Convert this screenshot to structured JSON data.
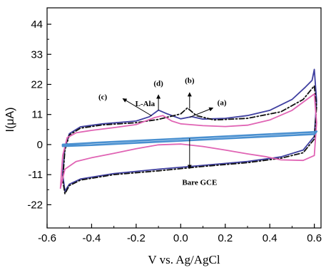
{
  "chart_data": {
    "type": "line",
    "title": "",
    "xlabel": "V vs. Ag/AgCl",
    "ylabel": "I(μA)",
    "xlim": [
      -0.6,
      0.63
    ],
    "ylim": [
      -30.5,
      50
    ],
    "x_ticks": [
      -0.6,
      -0.4,
      -0.2,
      0.0,
      0.2,
      0.4,
      0.6
    ],
    "x_tick_labels": [
      "-0.6",
      "-0.4",
      "-0.2",
      "0.0",
      "0.2",
      "0.4",
      "0.6"
    ],
    "y_ticks": [
      -22,
      -11,
      0,
      11,
      22,
      33,
      44
    ],
    "y_tick_labels": [
      "-22",
      "-11",
      "0",
      "11",
      "22",
      "33",
      "44"
    ],
    "grid": false,
    "series": [
      {
        "label_key": "d",
        "color": "#3f3fa0",
        "dash": "none",
        "points": [
          [
            -0.53,
            -11
          ],
          [
            -0.52,
            -1
          ],
          [
            -0.5,
            4
          ],
          [
            -0.45,
            6.5
          ],
          [
            -0.35,
            7.6
          ],
          [
            -0.2,
            8.6
          ],
          [
            -0.14,
            10.2
          ],
          [
            -0.1,
            12.6
          ],
          [
            -0.06,
            11.2
          ],
          [
            0.0,
            9.4
          ],
          [
            0.05,
            10.2
          ],
          [
            0.1,
            9.3
          ],
          [
            0.2,
            9.6
          ],
          [
            0.3,
            10.6
          ],
          [
            0.4,
            12.5
          ],
          [
            0.5,
            16.5
          ],
          [
            0.56,
            21
          ],
          [
            0.59,
            23.5
          ],
          [
            0.6,
            27.5
          ],
          [
            0.61,
            16
          ],
          [
            0.6,
            3
          ],
          [
            0.55,
            -2
          ],
          [
            0.45,
            -4.5
          ],
          [
            0.3,
            -6.2
          ],
          [
            0.1,
            -7.6
          ],
          [
            -0.1,
            -9
          ],
          [
            -0.3,
            -10.6
          ],
          [
            -0.45,
            -12.6
          ],
          [
            -0.5,
            -14.5
          ],
          [
            -0.52,
            -17
          ],
          [
            -0.53,
            -11
          ]
        ]
      },
      {
        "label_key": "b",
        "color": "#111111",
        "dash": "7 3 2 3",
        "points": [
          [
            -0.53,
            -13
          ],
          [
            -0.52,
            -2
          ],
          [
            -0.5,
            3.5
          ],
          [
            -0.45,
            6
          ],
          [
            -0.35,
            7.2
          ],
          [
            -0.2,
            8
          ],
          [
            -0.1,
            9.2
          ],
          [
            0.0,
            11.2
          ],
          [
            0.03,
            13.4
          ],
          [
            0.07,
            10.6
          ],
          [
            0.15,
            9
          ],
          [
            0.3,
            9.6
          ],
          [
            0.45,
            12
          ],
          [
            0.55,
            16.5
          ],
          [
            0.6,
            21.5
          ],
          [
            0.61,
            14
          ],
          [
            0.6,
            2
          ],
          [
            0.55,
            -3
          ],
          [
            0.45,
            -5
          ],
          [
            0.3,
            -6.6
          ],
          [
            0.1,
            -8
          ],
          [
            -0.1,
            -9.6
          ],
          [
            -0.3,
            -11
          ],
          [
            -0.45,
            -13
          ],
          [
            -0.5,
            -15
          ],
          [
            -0.52,
            -18
          ],
          [
            -0.53,
            -13
          ]
        ]
      },
      {
        "label_key": "c",
        "color": "#e064b4",
        "dash": "none",
        "points": [
          [
            -0.54,
            -16
          ],
          [
            -0.53,
            -4
          ],
          [
            -0.51,
            2.5
          ],
          [
            -0.47,
            4.3
          ],
          [
            -0.4,
            5.2
          ],
          [
            -0.3,
            6.2
          ],
          [
            -0.2,
            7.3
          ],
          [
            -0.12,
            9.8
          ],
          [
            -0.08,
            10.6
          ],
          [
            -0.04,
            8.6
          ],
          [
            0.0,
            7.6
          ],
          [
            0.1,
            6.9
          ],
          [
            0.2,
            6.6
          ],
          [
            0.3,
            7.1
          ],
          [
            0.4,
            9
          ],
          [
            0.5,
            12.5
          ],
          [
            0.6,
            18.5
          ],
          [
            0.61,
            8
          ],
          [
            0.6,
            -4
          ],
          [
            0.55,
            -5.8
          ],
          [
            0.45,
            -5.6
          ],
          [
            0.38,
            -4.4
          ],
          [
            0.3,
            -3.4
          ],
          [
            0.2,
            -2
          ],
          [
            0.1,
            -0.7
          ],
          [
            0.0,
            0.2
          ],
          [
            -0.1,
            -0.1
          ],
          [
            -0.2,
            -1.5
          ],
          [
            -0.3,
            -3.2
          ],
          [
            -0.4,
            -4.8
          ],
          [
            -0.47,
            -6.2
          ],
          [
            -0.52,
            -9
          ],
          [
            -0.54,
            -16
          ]
        ]
      },
      {
        "label_key": "bare",
        "color": "#4a90d0",
        "dash": "none",
        "points": [
          [
            -0.53,
            0
          ],
          [
            -0.4,
            0.6
          ],
          [
            -0.2,
            1.4
          ],
          [
            0.0,
            2.2
          ],
          [
            0.2,
            3
          ],
          [
            0.4,
            3.8
          ],
          [
            0.6,
            4.6
          ],
          [
            0.61,
            4.8
          ],
          [
            0.6,
            3.8
          ],
          [
            0.4,
            3
          ],
          [
            0.2,
            2.2
          ],
          [
            0.0,
            1.4
          ],
          [
            -0.2,
            0.6
          ],
          [
            -0.4,
            -0.2
          ],
          [
            -0.53,
            -0.6
          ],
          [
            -0.53,
            0
          ]
        ]
      }
    ],
    "annotations": [
      {
        "text": "(d)",
        "x": -0.1,
        "y": 21.5,
        "arrow_from": [
          -0.1,
          12.5
        ],
        "arrow_to": [
          -0.1,
          18.2
        ]
      },
      {
        "text": "(b)",
        "x": 0.04,
        "y": 22.5,
        "arrow_from": [
          0.04,
          13.2
        ],
        "arrow_to": [
          0.04,
          19
        ]
      },
      {
        "text": "(c)",
        "x": -0.35,
        "y": 16.5,
        "arrow_from": [
          -0.13,
          10.5
        ],
        "arrow_to": [
          -0.26,
          16.8
        ]
      },
      {
        "text": "(a)",
        "x": 0.185,
        "y": 14.5,
        "arrow_from": [
          0.04,
          10
        ],
        "arrow_to": [
          0.145,
          13.4
        ]
      },
      {
        "text": "L-Ala",
        "x": -0.16,
        "y": 14
      },
      {
        "text": "Bare GCE",
        "x": 0.085,
        "y": -14.8,
        "arrow_from": [
          0.04,
          2.3
        ],
        "arrow_to": [
          0.04,
          -8.8
        ]
      }
    ]
  }
}
